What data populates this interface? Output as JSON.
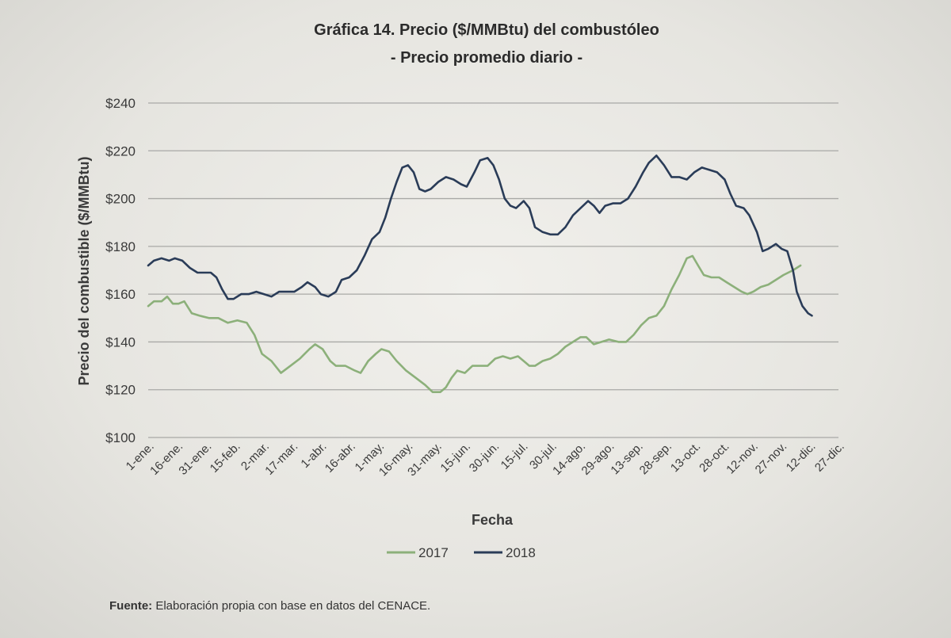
{
  "chart_data": {
    "type": "line",
    "title": "Gráfica 14. Precio ($/MMBtu) del combustóleo",
    "subtitle": "- Precio promedio diario -",
    "xlabel": "Fecha",
    "ylabel": "Precio del combustible ($/MMBtu)",
    "ylim": [
      100,
      240
    ],
    "y_ticks": [
      100,
      120,
      140,
      160,
      180,
      200,
      220,
      240
    ],
    "y_tick_labels": [
      "$100",
      "$120",
      "$140",
      "$160",
      "$180",
      "$200",
      "$220",
      "$240"
    ],
    "grid": true,
    "legend_position": "bottom",
    "x_tick_labels": [
      "1-ene.",
      "16-ene.",
      "31-ene.",
      "15-feb.",
      "2-mar.",
      "17-mar.",
      "1-abr.",
      "16-abr.",
      "1-may.",
      "16-may.",
      "31-may.",
      "15-jun.",
      "30-jun.",
      "15-jul.",
      "30-jul.",
      "14-ago.",
      "29-ago.",
      "13-sep.",
      "28-sep.",
      "13-oct.",
      "28-oct.",
      "12-nov.",
      "27-nov.",
      "12-dic.",
      "27-dic."
    ],
    "series": [
      {
        "name": "2017",
        "color": "#8cb07a",
        "points": [
          [
            1,
            155
          ],
          [
            4,
            157
          ],
          [
            8,
            157
          ],
          [
            11,
            159
          ],
          [
            14,
            156
          ],
          [
            17,
            156
          ],
          [
            20,
            157
          ],
          [
            24,
            152
          ],
          [
            28,
            151
          ],
          [
            33,
            150
          ],
          [
            38,
            150
          ],
          [
            43,
            148
          ],
          [
            48,
            149
          ],
          [
            53,
            148
          ],
          [
            57,
            143
          ],
          [
            61,
            135
          ],
          [
            66,
            132
          ],
          [
            71,
            127
          ],
          [
            76,
            130
          ],
          [
            81,
            133
          ],
          [
            86,
            137
          ],
          [
            89,
            139
          ],
          [
            93,
            137
          ],
          [
            97,
            132
          ],
          [
            100,
            130
          ],
          [
            105,
            130
          ],
          [
            110,
            128
          ],
          [
            113,
            127
          ],
          [
            117,
            132
          ],
          [
            121,
            135
          ],
          [
            124,
            137
          ],
          [
            128,
            136
          ],
          [
            132,
            132
          ],
          [
            137,
            128
          ],
          [
            142,
            125
          ],
          [
            147,
            122
          ],
          [
            151,
            119
          ],
          [
            155,
            119
          ],
          [
            158,
            121
          ],
          [
            161,
            125
          ],
          [
            164,
            128
          ],
          [
            168,
            127
          ],
          [
            172,
            130
          ],
          [
            176,
            130
          ],
          [
            180,
            130
          ],
          [
            184,
            133
          ],
          [
            188,
            134
          ],
          [
            192,
            133
          ],
          [
            196,
            134
          ],
          [
            199,
            132
          ],
          [
            202,
            130
          ],
          [
            205,
            130
          ],
          [
            209,
            132
          ],
          [
            213,
            133
          ],
          [
            217,
            135
          ],
          [
            221,
            138
          ],
          [
            225,
            140
          ],
          [
            229,
            142
          ],
          [
            232,
            142
          ],
          [
            236,
            139
          ],
          [
            240,
            140
          ],
          [
            244,
            141
          ],
          [
            249,
            140
          ],
          [
            253,
            140
          ],
          [
            257,
            143
          ],
          [
            261,
            147
          ],
          [
            265,
            150
          ],
          [
            269,
            151
          ],
          [
            273,
            155
          ],
          [
            277,
            162
          ],
          [
            281,
            168
          ],
          [
            285,
            175
          ],
          [
            288,
            176
          ],
          [
            291,
            172
          ],
          [
            294,
            168
          ],
          [
            298,
            167
          ],
          [
            302,
            167
          ],
          [
            306,
            165
          ],
          [
            310,
            163
          ],
          [
            314,
            161
          ],
          [
            317,
            160
          ],
          [
            320,
            161
          ],
          [
            324,
            163
          ],
          [
            328,
            164
          ],
          [
            332,
            166
          ],
          [
            336,
            168
          ],
          [
            341,
            170
          ],
          [
            345,
            172
          ]
        ]
      },
      {
        "name": "2018",
        "color": "#2a3c58",
        "points": [
          [
            1,
            172
          ],
          [
            4,
            174
          ],
          [
            8,
            175
          ],
          [
            12,
            174
          ],
          [
            15,
            175
          ],
          [
            19,
            174
          ],
          [
            23,
            171
          ],
          [
            27,
            169
          ],
          [
            31,
            169
          ],
          [
            34,
            169
          ],
          [
            37,
            167
          ],
          [
            40,
            162
          ],
          [
            43,
            158
          ],
          [
            46,
            158
          ],
          [
            50,
            160
          ],
          [
            54,
            160
          ],
          [
            58,
            161
          ],
          [
            62,
            160
          ],
          [
            66,
            159
          ],
          [
            70,
            161
          ],
          [
            74,
            161
          ],
          [
            78,
            161
          ],
          [
            82,
            163
          ],
          [
            85,
            165
          ],
          [
            89,
            163
          ],
          [
            92,
            160
          ],
          [
            96,
            159
          ],
          [
            100,
            161
          ],
          [
            103,
            166
          ],
          [
            107,
            167
          ],
          [
            111,
            170
          ],
          [
            115,
            176
          ],
          [
            119,
            183
          ],
          [
            123,
            186
          ],
          [
            126,
            192
          ],
          [
            129,
            200
          ],
          [
            132,
            207
          ],
          [
            135,
            213
          ],
          [
            138,
            214
          ],
          [
            141,
            211
          ],
          [
            144,
            204
          ],
          [
            147,
            203
          ],
          [
            150,
            204
          ],
          [
            154,
            207
          ],
          [
            158,
            209
          ],
          [
            162,
            208
          ],
          [
            166,
            206
          ],
          [
            169,
            205
          ],
          [
            173,
            211
          ],
          [
            176,
            216
          ],
          [
            180,
            217
          ],
          [
            183,
            214
          ],
          [
            186,
            208
          ],
          [
            189,
            200
          ],
          [
            192,
            197
          ],
          [
            195,
            196
          ],
          [
            199,
            199
          ],
          [
            202,
            196
          ],
          [
            205,
            188
          ],
          [
            209,
            186
          ],
          [
            213,
            185
          ],
          [
            217,
            185
          ],
          [
            221,
            188
          ],
          [
            225,
            193
          ],
          [
            229,
            196
          ],
          [
            233,
            199
          ],
          [
            236,
            197
          ],
          [
            239,
            194
          ],
          [
            242,
            197
          ],
          [
            246,
            198
          ],
          [
            250,
            198
          ],
          [
            254,
            200
          ],
          [
            258,
            205
          ],
          [
            262,
            211
          ],
          [
            265,
            215
          ],
          [
            269,
            218
          ],
          [
            273,
            214
          ],
          [
            277,
            209
          ],
          [
            281,
            209
          ],
          [
            285,
            208
          ],
          [
            289,
            211
          ],
          [
            293,
            213
          ],
          [
            297,
            212
          ],
          [
            301,
            211
          ],
          [
            305,
            208
          ],
          [
            308,
            202
          ],
          [
            311,
            197
          ],
          [
            315,
            196
          ],
          [
            318,
            193
          ],
          [
            322,
            186
          ],
          [
            325,
            178
          ],
          [
            328,
            179
          ],
          [
            332,
            181
          ],
          [
            335,
            179
          ],
          [
            338,
            178
          ],
          [
            341,
            170
          ],
          [
            343,
            161
          ],
          [
            346,
            155
          ],
          [
            349,
            152
          ],
          [
            351,
            151
          ]
        ]
      }
    ]
  },
  "source": {
    "label": "Fuente:",
    "text": "Elaboración propia con base en datos del CENACE."
  }
}
